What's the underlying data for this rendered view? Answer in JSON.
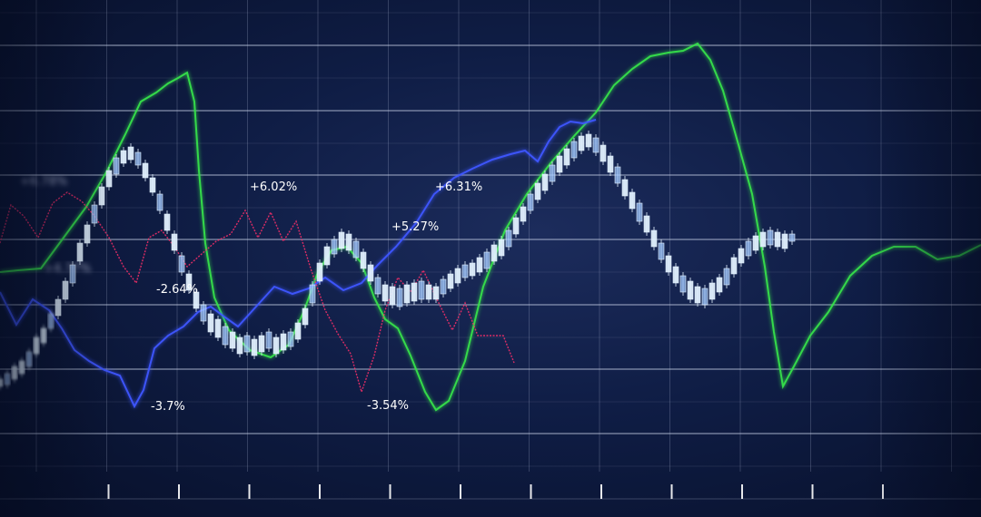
{
  "chart_data": {
    "type": "line",
    "title": "",
    "xlabel": "",
    "ylabel": "",
    "x_ticks": 14,
    "grid": true,
    "legend": "none",
    "colors": {
      "background": "#0f1d45",
      "grid": "#c6cfe6",
      "candles": "#e3f2ff",
      "green": "#35e04a",
      "blue": "#3d55ff",
      "red": "#ff2f6a"
    },
    "series": [
      {
        "color": "green",
        "values": [
          [
            0,
            300
          ],
          [
            20,
            298
          ],
          [
            45,
            296
          ],
          [
            70,
            262
          ],
          [
            95,
            228
          ],
          [
            118,
            188
          ],
          [
            138,
            148
          ],
          [
            155,
            112
          ],
          [
            172,
            102
          ],
          [
            185,
            92
          ],
          [
            196,
            86
          ],
          [
            206,
            80
          ],
          [
            214,
            112
          ],
          [
            219,
            188
          ],
          [
            226,
            268
          ],
          [
            236,
            328
          ],
          [
            252,
            364
          ],
          [
            275,
            386
          ],
          [
            298,
            394
          ],
          [
            318,
            380
          ],
          [
            335,
            342
          ],
          [
            350,
            300
          ],
          [
            365,
            276
          ],
          [
            382,
            272
          ],
          [
            398,
            290
          ],
          [
            412,
            328
          ],
          [
            424,
            352
          ],
          [
            438,
            362
          ],
          [
            452,
            392
          ],
          [
            468,
            432
          ],
          [
            480,
            452
          ],
          [
            494,
            442
          ],
          [
            512,
            398
          ],
          [
            532,
            316
          ],
          [
            556,
            254
          ],
          [
            580,
            214
          ],
          [
            606,
            180
          ],
          [
            632,
            150
          ],
          [
            656,
            124
          ],
          [
            676,
            94
          ],
          [
            696,
            76
          ],
          [
            716,
            62
          ],
          [
            736,
            58
          ],
          [
            752,
            56
          ],
          [
            768,
            48
          ],
          [
            782,
            66
          ],
          [
            796,
            100
          ],
          [
            812,
            156
          ],
          [
            828,
            214
          ],
          [
            842,
            294
          ],
          [
            852,
            366
          ],
          [
            862,
            426
          ],
          [
            874,
            404
          ],
          [
            892,
            370
          ],
          [
            912,
            344
          ],
          [
            936,
            304
          ],
          [
            960,
            282
          ],
          [
            984,
            272
          ],
          [
            1008,
            272
          ],
          [
            1032,
            286
          ],
          [
            1056,
            282
          ],
          [
            1080,
            270
          ]
        ]
      },
      {
        "color": "blue",
        "values": [
          [
            0,
            322
          ],
          [
            18,
            358
          ],
          [
            36,
            330
          ],
          [
            54,
            342
          ],
          [
            68,
            362
          ],
          [
            82,
            386
          ],
          [
            98,
            398
          ],
          [
            115,
            408
          ],
          [
            132,
            414
          ],
          [
            148,
            448
          ],
          [
            158,
            430
          ],
          [
            170,
            384
          ],
          [
            185,
            370
          ],
          [
            202,
            360
          ],
          [
            218,
            344
          ],
          [
            232,
            338
          ],
          [
            248,
            350
          ],
          [
            262,
            360
          ],
          [
            282,
            338
          ],
          [
            302,
            316
          ],
          [
            322,
            324
          ],
          [
            340,
            318
          ],
          [
            358,
            306
          ],
          [
            378,
            320
          ],
          [
            398,
            312
          ],
          [
            416,
            292
          ],
          [
            436,
            272
          ],
          [
            458,
            246
          ],
          [
            478,
            214
          ],
          [
            500,
            196
          ],
          [
            520,
            186
          ],
          [
            542,
            176
          ],
          [
            562,
            170
          ],
          [
            578,
            166
          ],
          [
            592,
            178
          ],
          [
            604,
            156
          ],
          [
            616,
            140
          ],
          [
            628,
            134
          ],
          [
            642,
            136
          ],
          [
            656,
            132
          ]
        ]
      },
      {
        "color": "red",
        "values": [
          [
            0,
            268
          ],
          [
            12,
            226
          ],
          [
            26,
            238
          ],
          [
            42,
            262
          ],
          [
            58,
            224
          ],
          [
            74,
            212
          ],
          [
            90,
            222
          ],
          [
            104,
            238
          ],
          [
            120,
            262
          ],
          [
            136,
            294
          ],
          [
            150,
            312
          ],
          [
            164,
            262
          ],
          [
            178,
            254
          ],
          [
            192,
            272
          ],
          [
            206,
            294
          ],
          [
            222,
            280
          ],
          [
            238,
            266
          ],
          [
            254,
            258
          ],
          [
            270,
            232
          ],
          [
            284,
            262
          ],
          [
            298,
            234
          ],
          [
            312,
            266
          ],
          [
            326,
            244
          ],
          [
            342,
            296
          ],
          [
            358,
            342
          ],
          [
            372,
            368
          ],
          [
            386,
            390
          ],
          [
            398,
            432
          ],
          [
            412,
            392
          ],
          [
            424,
            342
          ],
          [
            438,
            306
          ],
          [
            452,
            322
          ],
          [
            466,
            298
          ],
          [
            482,
            332
          ],
          [
            498,
            364
          ],
          [
            512,
            334
          ],
          [
            526,
            370
          ],
          [
            540,
            370
          ],
          [
            554,
            370
          ],
          [
            566,
            400
          ]
        ]
      }
    ],
    "candles": [
      [
        0,
        418,
        426
      ],
      [
        8,
        412,
        424
      ],
      [
        16,
        404,
        418
      ],
      [
        24,
        398,
        412
      ],
      [
        32,
        388,
        404
      ],
      [
        40,
        372,
        390
      ],
      [
        48,
        362,
        378
      ],
      [
        56,
        346,
        362
      ],
      [
        64,
        330,
        348
      ],
      [
        72,
        310,
        330
      ],
      [
        80,
        292,
        312
      ],
      [
        88,
        268,
        288
      ],
      [
        96,
        248,
        268
      ],
      [
        104,
        226,
        246
      ],
      [
        112,
        206,
        226
      ],
      [
        120,
        188,
        206
      ],
      [
        128,
        174,
        192
      ],
      [
        136,
        166,
        180
      ],
      [
        144,
        162,
        176
      ],
      [
        152,
        168,
        182
      ],
      [
        160,
        180,
        196
      ],
      [
        168,
        196,
        212
      ],
      [
        176,
        214,
        232
      ],
      [
        184,
        236,
        254
      ],
      [
        192,
        258,
        276
      ],
      [
        200,
        282,
        300
      ],
      [
        208,
        302,
        320
      ],
      [
        216,
        322,
        340
      ],
      [
        224,
        336,
        354
      ],
      [
        232,
        346,
        366
      ],
      [
        240,
        352,
        372
      ],
      [
        248,
        360,
        380
      ],
      [
        256,
        366,
        384
      ],
      [
        264,
        372,
        390
      ],
      [
        272,
        370,
        388
      ],
      [
        280,
        374,
        392
      ],
      [
        288,
        370,
        388
      ],
      [
        296,
        366,
        384
      ],
      [
        304,
        372,
        390
      ],
      [
        312,
        368,
        386
      ],
      [
        320,
        366,
        382
      ],
      [
        328,
        356,
        374
      ],
      [
        336,
        340,
        358
      ],
      [
        344,
        314,
        334
      ],
      [
        352,
        290,
        310
      ],
      [
        360,
        272,
        292
      ],
      [
        368,
        264,
        280
      ],
      [
        376,
        256,
        274
      ],
      [
        384,
        258,
        276
      ],
      [
        392,
        266,
        284
      ],
      [
        400,
        278,
        296
      ],
      [
        408,
        292,
        310
      ],
      [
        416,
        306,
        324
      ],
      [
        424,
        314,
        332
      ],
      [
        432,
        316,
        336
      ],
      [
        440,
        318,
        338
      ],
      [
        448,
        314,
        334
      ],
      [
        456,
        312,
        332
      ],
      [
        464,
        310,
        330
      ],
      [
        472,
        314,
        330
      ],
      [
        480,
        316,
        330
      ],
      [
        488,
        308,
        324
      ],
      [
        496,
        302,
        318
      ],
      [
        504,
        296,
        312
      ],
      [
        512,
        292,
        306
      ],
      [
        520,
        290,
        304
      ],
      [
        528,
        284,
        300
      ],
      [
        536,
        278,
        296
      ],
      [
        544,
        270,
        288
      ],
      [
        552,
        264,
        282
      ],
      [
        560,
        254,
        272
      ],
      [
        568,
        240,
        258
      ],
      [
        576,
        228,
        244
      ],
      [
        584,
        214,
        232
      ],
      [
        592,
        202,
        220
      ],
      [
        600,
        192,
        210
      ],
      [
        608,
        182,
        200
      ],
      [
        616,
        172,
        190
      ],
      [
        624,
        164,
        182
      ],
      [
        632,
        156,
        174
      ],
      [
        640,
        150,
        166
      ],
      [
        648,
        148,
        162
      ],
      [
        656,
        152,
        168
      ],
      [
        664,
        160,
        178
      ],
      [
        672,
        172,
        190
      ],
      [
        680,
        184,
        202
      ],
      [
        688,
        198,
        216
      ],
      [
        696,
        212,
        230
      ],
      [
        704,
        224,
        244
      ],
      [
        712,
        238,
        256
      ],
      [
        720,
        254,
        272
      ],
      [
        728,
        268,
        286
      ],
      [
        736,
        282,
        300
      ],
      [
        744,
        294,
        312
      ],
      [
        752,
        304,
        322
      ],
      [
        760,
        310,
        330
      ],
      [
        768,
        316,
        334
      ],
      [
        776,
        318,
        336
      ],
      [
        784,
        312,
        330
      ],
      [
        792,
        306,
        322
      ],
      [
        800,
        296,
        314
      ],
      [
        808,
        284,
        302
      ],
      [
        816,
        274,
        290
      ],
      [
        824,
        266,
        282
      ],
      [
        832,
        260,
        276
      ],
      [
        840,
        256,
        272
      ],
      [
        848,
        254,
        270
      ],
      [
        856,
        256,
        272
      ],
      [
        864,
        258,
        274
      ],
      [
        872,
        258,
        266
      ]
    ],
    "annotations": [
      {
        "text": "+6.78%",
        "x": 22,
        "y": 204,
        "blurred": true
      },
      {
        "text": "+4.77%",
        "x": 48,
        "y": 300,
        "blurred": true
      },
      {
        "text": "-2.64%",
        "x": 172,
        "y": 323,
        "blurred": false
      },
      {
        "text": "-3.7%",
        "x": 166,
        "y": 452,
        "blurred": false
      },
      {
        "text": "+6.02%",
        "x": 275,
        "y": 210,
        "blurred": false
      },
      {
        "text": "-3.54%",
        "x": 404,
        "y": 451,
        "blurred": false
      },
      {
        "text": "+5.27%",
        "x": 431,
        "y": 254,
        "blurred": false
      },
      {
        "text": "+6.31%",
        "x": 479,
        "y": 210,
        "blurred": false
      }
    ]
  }
}
